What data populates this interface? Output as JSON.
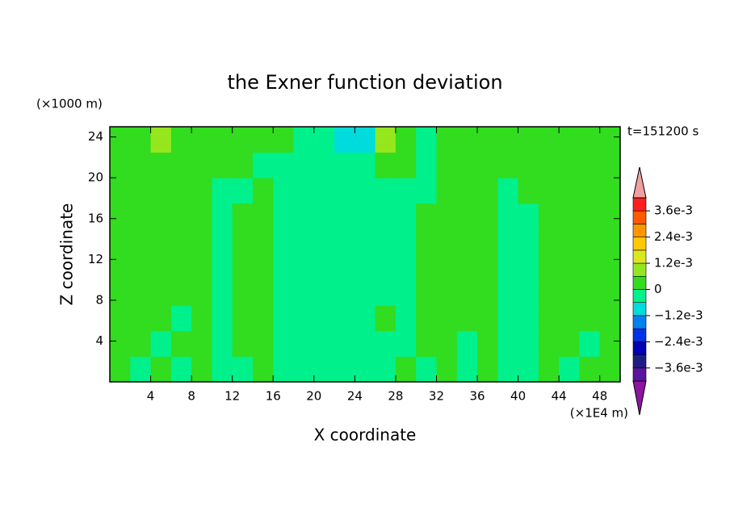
{
  "chart_data": {
    "type": "contour",
    "title": "the Exner function deviation",
    "xlabel": "X coordinate",
    "ylabel": "Z coordinate",
    "x_unit": "(×1E4 m)",
    "y_unit": "(×1000 m)",
    "time_label": "t=151200 s",
    "xlim": [
      0,
      50
    ],
    "ylim": [
      0,
      25
    ],
    "xticks": [
      4,
      8,
      12,
      16,
      20,
      24,
      28,
      32,
      36,
      40,
      44,
      48
    ],
    "yticks": [
      4,
      8,
      12,
      16,
      20,
      24
    ],
    "x": [
      1,
      3,
      5,
      7,
      9,
      11,
      13,
      15,
      17,
      19,
      21,
      23,
      25,
      27,
      29,
      31,
      33,
      35,
      37,
      39,
      41,
      43,
      45,
      47,
      49
    ],
    "y": [
      1.25,
      3.75,
      6.25,
      8.75,
      11.25,
      13.75,
      16.25,
      18.75,
      21.25,
      23.75
    ],
    "z": [
      [
        0.0003,
        -0.0003,
        0.0003,
        -0.0003,
        0.0003,
        -0.0003,
        -0.0003,
        0.0003,
        -0.0003,
        -0.0003,
        -0.0003,
        -0.0003,
        -0.0003,
        -0.0003,
        0.0003,
        -0.0003,
        0.0003,
        -0.0003,
        0.0003,
        -0.0003,
        -0.0003,
        0.0003,
        -0.0003,
        0.0003,
        0.0003
      ],
      [
        0.0003,
        0.0003,
        -0.0003,
        0.0003,
        0.0003,
        -0.0003,
        0.0003,
        0.0003,
        -0.0003,
        -0.0003,
        -0.0003,
        -0.0003,
        -0.0003,
        -0.0003,
        -0.0003,
        0.0003,
        0.0003,
        -0.0003,
        0.0003,
        -0.0003,
        -0.0003,
        0.0003,
        0.0003,
        -0.0003,
        0.0003
      ],
      [
        0.0003,
        0.0003,
        0.0003,
        -0.0003,
        0.0003,
        -0.0003,
        0.0003,
        0.0003,
        -0.0003,
        -0.0003,
        -0.0003,
        -0.0003,
        -0.0003,
        0.0003,
        -0.0003,
        0.0003,
        0.0003,
        0.0003,
        0.0003,
        -0.0003,
        -0.0003,
        0.0003,
        0.0003,
        0.0003,
        0.0003
      ],
      [
        0.0003,
        0.0003,
        0.0003,
        0.0003,
        0.0003,
        -0.0003,
        0.0003,
        0.0003,
        -0.0003,
        -0.0003,
        -0.0003,
        -0.0003,
        -0.0003,
        -0.0003,
        -0.0003,
        0.0003,
        0.0003,
        0.0003,
        0.0003,
        -0.0003,
        -0.0003,
        0.0003,
        0.0003,
        0.0003,
        0.0003
      ],
      [
        0.0003,
        0.0003,
        0.0003,
        0.0003,
        0.0003,
        -0.0003,
        0.0003,
        0.0003,
        -0.0003,
        -0.0003,
        -0.0003,
        -0.0003,
        -0.0003,
        -0.0003,
        -0.0003,
        0.0003,
        0.0003,
        0.0003,
        0.0003,
        -0.0003,
        -0.0003,
        0.0003,
        0.0003,
        0.0003,
        0.0003
      ],
      [
        0.0003,
        0.0003,
        0.0003,
        0.0003,
        0.0003,
        -0.0003,
        0.0003,
        0.0003,
        -0.0003,
        -0.0003,
        -0.0003,
        -0.0003,
        -0.0003,
        -0.0003,
        -0.0003,
        0.0003,
        0.0003,
        0.0003,
        0.0003,
        -0.0003,
        -0.0003,
        0.0003,
        0.0003,
        0.0003,
        0.0003
      ],
      [
        0.0003,
        0.0003,
        0.0003,
        0.0003,
        0.0003,
        -0.0003,
        0.0003,
        0.0003,
        -0.0003,
        -0.0003,
        -0.0003,
        -0.0003,
        -0.0003,
        -0.0003,
        -0.0003,
        0.0003,
        0.0003,
        0.0003,
        0.0003,
        -0.0003,
        -0.0003,
        0.0003,
        0.0003,
        0.0003,
        0.0003
      ],
      [
        0.0003,
        0.0003,
        0.0003,
        0.0003,
        0.0003,
        -0.0003,
        -0.0003,
        0.0003,
        -0.0003,
        -0.0003,
        -0.0003,
        -0.0003,
        -0.0003,
        -0.0003,
        -0.0003,
        -0.0003,
        0.0003,
        0.0003,
        0.0003,
        -0.0003,
        0.0003,
        0.0003,
        0.0003,
        0.0003,
        0.0003
      ],
      [
        0.0003,
        0.0003,
        0.0003,
        0.0003,
        0.0003,
        0.0003,
        0.0003,
        -0.0003,
        -0.0003,
        -0.0003,
        -0.0003,
        -0.0003,
        -0.0003,
        0.0003,
        0.0003,
        -0.0003,
        0.0003,
        0.0003,
        0.0003,
        0.0003,
        0.0003,
        0.0003,
        0.0003,
        0.0003,
        0.0003
      ],
      [
        0.0003,
        0.0003,
        0.0009,
        0.0003,
        0.0003,
        0.0003,
        0.0003,
        0.0003,
        0.0003,
        -0.0003,
        -0.0003,
        -0.0009,
        -0.0009,
        0.0009,
        0.0003,
        -0.0003,
        0.0003,
        0.0003,
        0.0003,
        0.0003,
        0.0003,
        0.0003,
        0.0003,
        0.0003,
        0.0003
      ]
    ],
    "levels": [
      -0.0042,
      -0.0036,
      -0.003,
      -0.0024,
      -0.0018,
      -0.0012,
      -0.0006,
      0,
      0.0006,
      0.0012,
      0.0018,
      0.0024,
      0.003,
      0.0036,
      0.0042
    ],
    "colors": [
      "#5a14a0",
      "#1e1e82",
      "#0000b4",
      "#0032e6",
      "#0082f0",
      "#00dcdc",
      "#00f08c",
      "#32dc1e",
      "#96e61e",
      "#dce61e",
      "#ffc800",
      "#ff9600",
      "#ff5a00",
      "#ff1e1e"
    ],
    "extend_colors": [
      "#8c14a0",
      "#f0a0a0"
    ],
    "cbar_ticks": [
      {
        "value": 0.0036,
        "label": "3.6e-3"
      },
      {
        "value": 0.0024,
        "label": "2.4e-3"
      },
      {
        "value": 0.0012,
        "label": "1.2e-3"
      },
      0,
      {
        "value": -0.0012,
        "label": "−1.2e-3"
      },
      {
        "value": -0.0024,
        "label": "−2.4e-3"
      },
      {
        "value": -0.0036,
        "label": "−3.6e-3"
      }
    ]
  }
}
